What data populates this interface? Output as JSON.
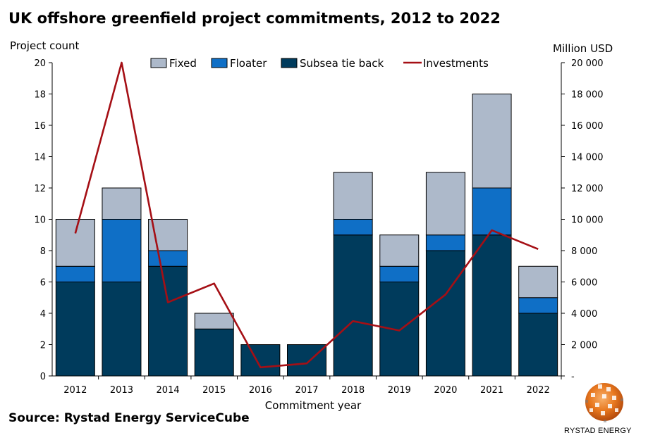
{
  "page_title": "UK offshore greenfield project commitments, 2012 to 2022",
  "source": "Source: Rystad Energy ServiceCube",
  "brand": "RYSTAD ENERGY",
  "colors": {
    "fixed": "#adb9ca",
    "floater": "#0f6fc6",
    "subsea": "#003b5c",
    "investments": "#a50f15"
  },
  "chart_data": {
    "type": "bar",
    "stacked": true,
    "title": "UK offshore greenfield project commitments, 2012 to 2022",
    "xlabel": "Commitment year",
    "ylabel": "Project count",
    "y2label": "Million USD",
    "categories": [
      "2012",
      "2013",
      "2014",
      "2015",
      "2016",
      "2017",
      "2018",
      "2019",
      "2020",
      "2021",
      "2022"
    ],
    "ylim": [
      0,
      20
    ],
    "y2lim": [
      0,
      20000
    ],
    "yticks": [
      "0",
      "2",
      "4",
      "6",
      "8",
      "10",
      "12",
      "14",
      "16",
      "18",
      "20"
    ],
    "y2ticks": [
      "-",
      "2 000",
      "4 000",
      "6 000",
      "8 000",
      "10 000",
      "12 000",
      "14 000",
      "16 000",
      "18 000",
      "20 000"
    ],
    "legend_position": "top",
    "series": [
      {
        "name": "Subsea tie back",
        "kind": "bar",
        "values": [
          6,
          6,
          7,
          3,
          2,
          2,
          9,
          6,
          8,
          9,
          4
        ]
      },
      {
        "name": "Floater",
        "kind": "bar",
        "values": [
          1,
          4,
          1,
          0,
          0,
          0,
          1,
          1,
          1,
          3,
          1
        ]
      },
      {
        "name": "Fixed",
        "kind": "bar",
        "values": [
          3,
          2,
          2,
          1,
          0,
          0,
          3,
          2,
          4,
          6,
          2
        ]
      },
      {
        "name": "Investments",
        "kind": "line",
        "axis": "right",
        "values": [
          9100,
          20000,
          4700,
          5900,
          550,
          800,
          3500,
          2900,
          5200,
          9300,
          8100
        ]
      }
    ],
    "legend": [
      "Fixed",
      "Floater",
      "Subsea tie back",
      "Investments"
    ]
  }
}
